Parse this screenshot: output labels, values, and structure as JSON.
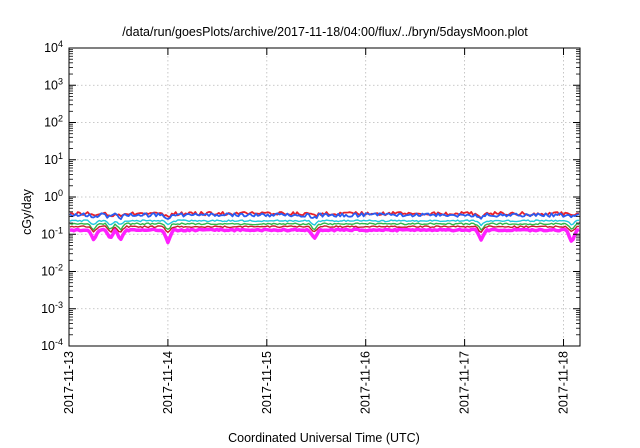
{
  "chart_data": {
    "type": "line",
    "title": "/data/run/goesPlots/archive/2017-11-18/04:00/flux/../bryn/5daysMoon.plot",
    "xlabel": "Coordinated Universal Time (UTC)",
    "ylabel": "cGy/day",
    "yscale": "log",
    "ylim": [
      0.0001,
      10000
    ],
    "y_ticks": [
      {
        "value": 0.0001,
        "base": "10",
        "exp": "-4"
      },
      {
        "value": 0.001,
        "base": "10",
        "exp": "-3"
      },
      {
        "value": 0.01,
        "base": "10",
        "exp": "-2"
      },
      {
        "value": 0.1,
        "base": "10",
        "exp": "-1"
      },
      {
        "value": 1,
        "base": "10",
        "exp": "0"
      },
      {
        "value": 10,
        "base": "10",
        "exp": "1"
      },
      {
        "value": 100,
        "base": "10",
        "exp": "2"
      },
      {
        "value": 1000,
        "base": "10",
        "exp": "3"
      },
      {
        "value": 10000,
        "base": "10",
        "exp": "4"
      }
    ],
    "xlim": [
      "2017-11-13",
      "2017-11-18T04:00"
    ],
    "x_ticks": [
      "2017-11-13",
      "2017-11-14",
      "2017-11-15",
      "2017-11-16",
      "2017-11-17",
      "2017-11-18"
    ],
    "grid": true,
    "series": [
      {
        "color": "#e8202a",
        "level": 0.36,
        "dips": [],
        "x": [
          "2017-11-13",
          "2017-11-14",
          "2017-11-15",
          "2017-11-16",
          "2017-11-17",
          "2017-11-18"
        ],
        "values": [
          0.36,
          0.36,
          0.36,
          0.36,
          0.36,
          0.36
        ]
      },
      {
        "color": "#2a5cf0",
        "level": 0.33,
        "dips": [],
        "x": [
          "2017-11-13",
          "2017-11-14",
          "2017-11-15",
          "2017-11-16",
          "2017-11-17",
          "2017-11-18"
        ],
        "values": [
          0.33,
          0.33,
          0.33,
          0.33,
          0.33,
          0.33
        ]
      },
      {
        "color": "#1ec8e0",
        "level": 0.23,
        "dips": [],
        "x": [
          "2017-11-13",
          "2017-11-14",
          "2017-11-15",
          "2017-11-16",
          "2017-11-17",
          "2017-11-18"
        ],
        "values": [
          0.23,
          0.23,
          0.23,
          0.23,
          0.23,
          0.23
        ]
      },
      {
        "color": "#2fb84a",
        "level": 0.19,
        "dips": [],
        "x": [
          "2017-11-13",
          "2017-11-14",
          "2017-11-15",
          "2017-11-16",
          "2017-11-17",
          "2017-11-18"
        ],
        "values": [
          0.19,
          0.19,
          0.19,
          0.19,
          0.19,
          0.19
        ]
      },
      {
        "color": "#c4202a",
        "level": 0.16,
        "dips": [],
        "x": [
          "2017-11-13",
          "2017-11-14",
          "2017-11-15",
          "2017-11-16",
          "2017-11-17",
          "2017-11-18"
        ],
        "values": [
          0.16,
          0.16,
          0.16,
          0.16,
          0.16,
          0.16
        ]
      },
      {
        "color": "#ff20ff",
        "level": 0.13,
        "dips": [
          {
            "x": "2017-11-13T06:00",
            "value": 0.07
          },
          {
            "x": "2017-11-13T10:00",
            "value": 0.075
          },
          {
            "x": "2017-11-13T12:30",
            "value": 0.07
          },
          {
            "x": "2017-11-14T00:00",
            "value": 0.06
          },
          {
            "x": "2017-11-15T11:30",
            "value": 0.075
          },
          {
            "x": "2017-11-17T04:00",
            "value": 0.07
          },
          {
            "x": "2017-11-18T02:00",
            "value": 0.06
          }
        ],
        "x": [
          "2017-11-13",
          "2017-11-14",
          "2017-11-15",
          "2017-11-16",
          "2017-11-17",
          "2017-11-18"
        ],
        "values": [
          0.13,
          0.06,
          0.13,
          0.13,
          0.13,
          0.13
        ]
      }
    ]
  }
}
